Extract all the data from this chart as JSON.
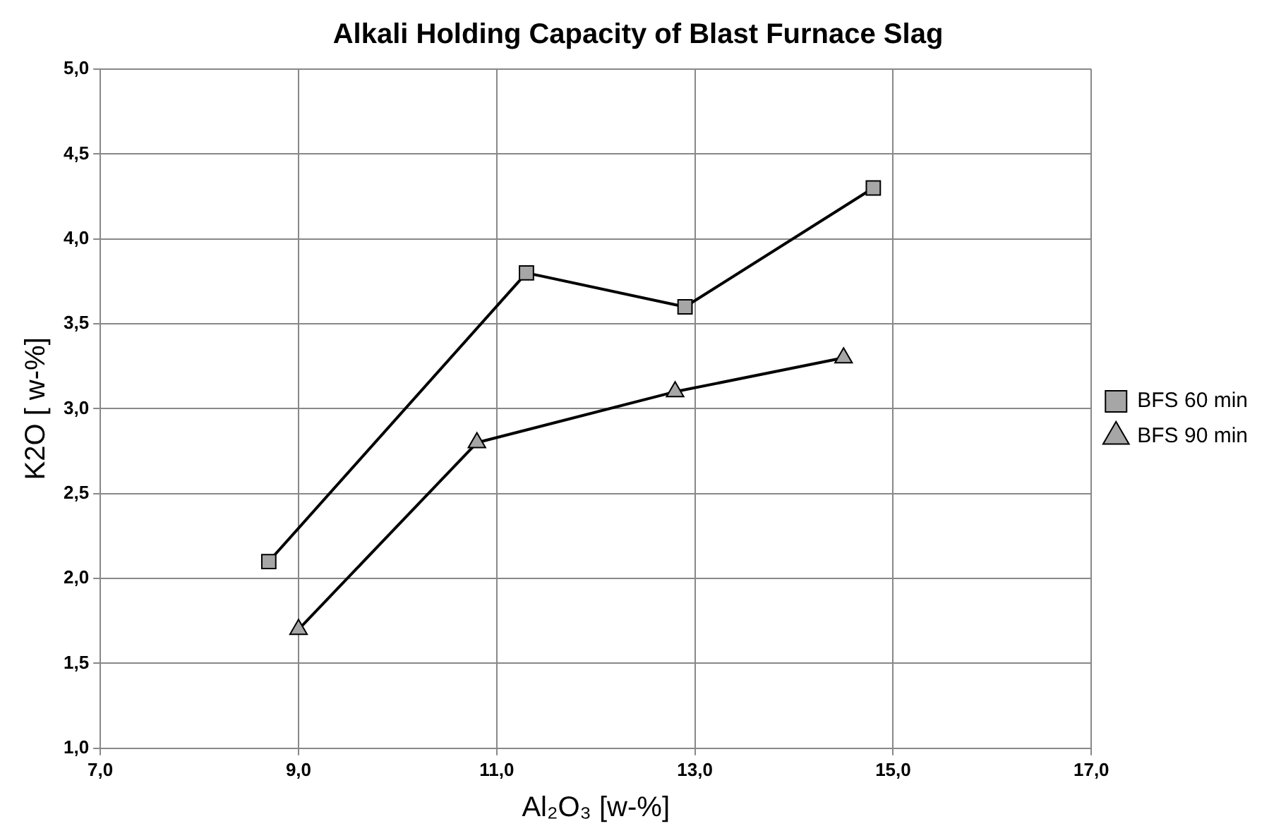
{
  "chart_data": {
    "type": "line",
    "title": "Alkali Holding Capacity of Blast Furnace Slag",
    "xlabel": "Al₂O₃ [w-%]",
    "ylabel": "K2O [ w-%]",
    "series": [
      {
        "name": "BFS 60 min",
        "color": "#000000",
        "marker": "square",
        "x": [
          8.7,
          11.3,
          12.9,
          14.8
        ],
        "values": [
          2.1,
          3.8,
          3.6,
          4.3
        ]
      },
      {
        "name": "BFS 90 min",
        "color": "#000000",
        "marker": "triangle",
        "x": [
          9.0,
          10.8,
          12.8,
          14.5
        ],
        "values": [
          1.7,
          2.8,
          3.1,
          3.3
        ]
      }
    ],
    "xlim": [
      7,
      17
    ],
    "xticks": [
      {
        "value": 7,
        "label": "7,0"
      },
      {
        "value": 9,
        "label": "9,0"
      },
      {
        "value": 11,
        "label": "11,0"
      },
      {
        "value": 13,
        "label": "13,0"
      },
      {
        "value": 15,
        "label": "15,0"
      },
      {
        "value": 17,
        "label": "17,0"
      }
    ],
    "ylim": [
      1,
      5
    ],
    "yticks": [
      {
        "value": 1,
        "label": "1,0"
      },
      {
        "value": 1.5,
        "label": "1,5"
      },
      {
        "value": 2,
        "label": "2,0"
      },
      {
        "value": 2.5,
        "label": "2,5"
      },
      {
        "value": 3,
        "label": "3,0"
      },
      {
        "value": 3.5,
        "label": "3,5"
      },
      {
        "value": 4,
        "label": "4,0"
      },
      {
        "value": 4.5,
        "label": "4,5"
      },
      {
        "value": 5,
        "label": "5,0"
      }
    ],
    "grid": true,
    "legend": "right",
    "line_style": "solid"
  }
}
